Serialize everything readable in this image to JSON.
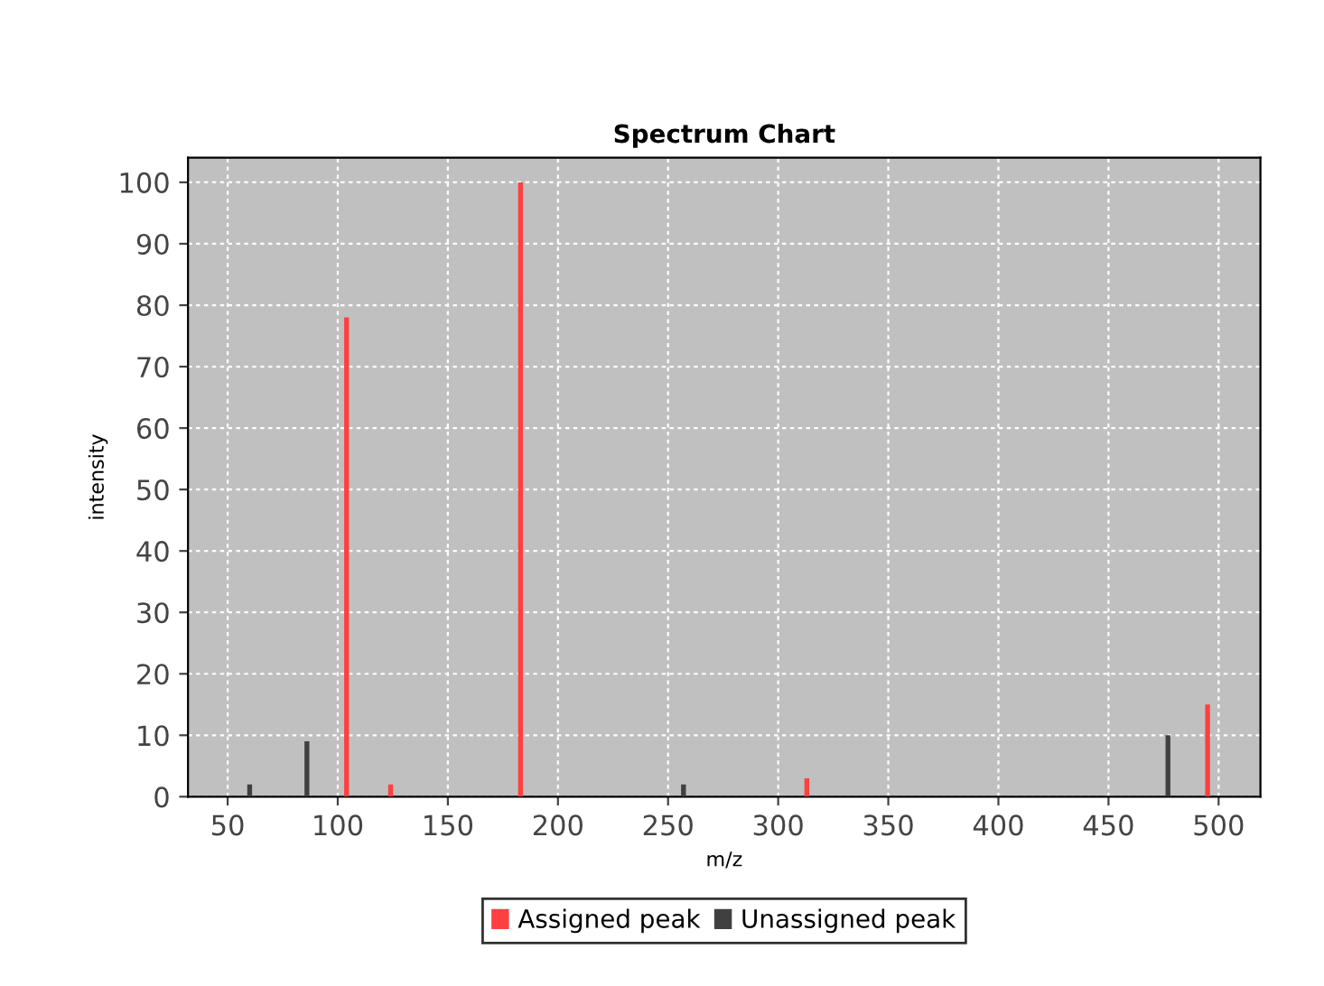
{
  "chart_data": {
    "type": "bar",
    "title": "Spectrum Chart",
    "xlabel": "m/z",
    "ylabel": "intensity",
    "series": [
      {
        "name": "Assigned peak",
        "color": "#ff4040",
        "x": [
          104,
          124,
          183,
          313,
          495
        ],
        "values": [
          78,
          2,
          100,
          3,
          15
        ]
      },
      {
        "name": "Unassigned peak",
        "color": "#404040",
        "x": [
          60,
          86,
          257,
          477
        ],
        "values": [
          2,
          9,
          2,
          10
        ]
      }
    ],
    "xlim": [
      32,
      519
    ],
    "xticks": [
      50,
      100,
      150,
      200,
      250,
      300,
      350,
      400,
      450,
      500
    ],
    "ylim": [
      0,
      104
    ],
    "yticks": [
      0,
      10,
      20,
      30,
      40,
      50,
      60,
      70,
      80,
      90,
      100
    ],
    "grid": true,
    "legend": "bottom"
  }
}
